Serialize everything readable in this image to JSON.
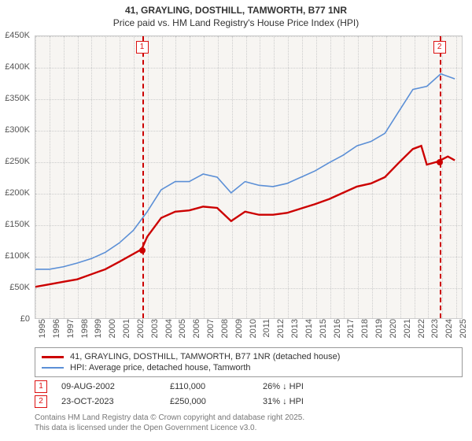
{
  "title": {
    "line1": "41, GRAYLING, DOSTHILL, TAMWORTH, B77 1NR",
    "line2": "Price paid vs. HM Land Registry's House Price Index (HPI)"
  },
  "chart": {
    "type": "line",
    "background_color": "#f7f5f2",
    "grid_color": "#cccccc",
    "border_color": "#cccccc",
    "x": {
      "min": 1995,
      "max": 2025.5,
      "ticks": [
        1995,
        1996,
        1997,
        1998,
        1999,
        2000,
        2001,
        2002,
        2003,
        2004,
        2005,
        2006,
        2007,
        2008,
        2009,
        2010,
        2011,
        2012,
        2013,
        2014,
        2015,
        2016,
        2017,
        2018,
        2019,
        2020,
        2021,
        2022,
        2023,
        2024,
        2025
      ]
    },
    "y": {
      "min": 0,
      "max": 450000,
      "tick_step": 50000,
      "tick_labels": [
        "£0",
        "£50K",
        "£100K",
        "£150K",
        "£200K",
        "£250K",
        "£300K",
        "£350K",
        "£400K",
        "£450K"
      ]
    },
    "series": [
      {
        "name": "price_paid",
        "label": "41, GRAYLING, DOSTHILL, TAMWORTH, B77 1NR (detached house)",
        "color": "#cc0000",
        "width": 2.4,
        "points": [
          [
            1995,
            50000
          ],
          [
            1996,
            54000
          ],
          [
            1997,
            58000
          ],
          [
            1998,
            62000
          ],
          [
            1999,
            70000
          ],
          [
            2000,
            78000
          ],
          [
            2001,
            90000
          ],
          [
            2002.6,
            110000
          ],
          [
            2003,
            130000
          ],
          [
            2004,
            160000
          ],
          [
            2005,
            170000
          ],
          [
            2006,
            172000
          ],
          [
            2007,
            178000
          ],
          [
            2008,
            176000
          ],
          [
            2009,
            155000
          ],
          [
            2010,
            170000
          ],
          [
            2011,
            165000
          ],
          [
            2012,
            165000
          ],
          [
            2013,
            168000
          ],
          [
            2014,
            175000
          ],
          [
            2015,
            182000
          ],
          [
            2016,
            190000
          ],
          [
            2017,
            200000
          ],
          [
            2018,
            210000
          ],
          [
            2019,
            215000
          ],
          [
            2020,
            225000
          ],
          [
            2021,
            248000
          ],
          [
            2022,
            270000
          ],
          [
            2022.6,
            275000
          ],
          [
            2023,
            245000
          ],
          [
            2023.8,
            250000
          ],
          [
            2024.5,
            258000
          ],
          [
            2025,
            252000
          ]
        ]
      },
      {
        "name": "hpi",
        "label": "HPI: Average price, detached house, Tamworth",
        "color": "#5b8fd6",
        "width": 1.6,
        "points": [
          [
            1995,
            78000
          ],
          [
            1996,
            78000
          ],
          [
            1997,
            82000
          ],
          [
            1998,
            88000
          ],
          [
            1999,
            95000
          ],
          [
            2000,
            105000
          ],
          [
            2001,
            120000
          ],
          [
            2002,
            140000
          ],
          [
            2003,
            170000
          ],
          [
            2004,
            205000
          ],
          [
            2005,
            218000
          ],
          [
            2006,
            218000
          ],
          [
            2007,
            230000
          ],
          [
            2008,
            225000
          ],
          [
            2009,
            200000
          ],
          [
            2010,
            218000
          ],
          [
            2011,
            212000
          ],
          [
            2012,
            210000
          ],
          [
            2013,
            215000
          ],
          [
            2014,
            225000
          ],
          [
            2015,
            235000
          ],
          [
            2016,
            248000
          ],
          [
            2017,
            260000
          ],
          [
            2018,
            275000
          ],
          [
            2019,
            282000
          ],
          [
            2020,
            295000
          ],
          [
            2021,
            330000
          ],
          [
            2022,
            365000
          ],
          [
            2023,
            370000
          ],
          [
            2024,
            390000
          ],
          [
            2025,
            382000
          ]
        ]
      }
    ],
    "markers": [
      {
        "id": "1",
        "x": 2002.6,
        "y": 110000,
        "color": "#cc0000"
      },
      {
        "id": "2",
        "x": 2023.8,
        "y": 250000,
        "color": "#cc0000"
      }
    ]
  },
  "legend": {
    "items": [
      {
        "color": "#cc0000",
        "width": 3,
        "label": "41, GRAYLING, DOSTHILL, TAMWORTH, B77 1NR (detached house)"
      },
      {
        "color": "#5b8fd6",
        "width": 2,
        "label": "HPI: Average price, detached house, Tamworth"
      }
    ]
  },
  "data_rows": [
    {
      "id": "1",
      "date": "09-AUG-2002",
      "price": "£110,000",
      "delta": "26% ↓ HPI"
    },
    {
      "id": "2",
      "date": "23-OCT-2023",
      "price": "£250,000",
      "delta": "31% ↓ HPI"
    }
  ],
  "footer": {
    "line1": "Contains HM Land Registry data © Crown copyright and database right 2025.",
    "line2": "This data is licensed under the Open Government Licence v3.0."
  }
}
